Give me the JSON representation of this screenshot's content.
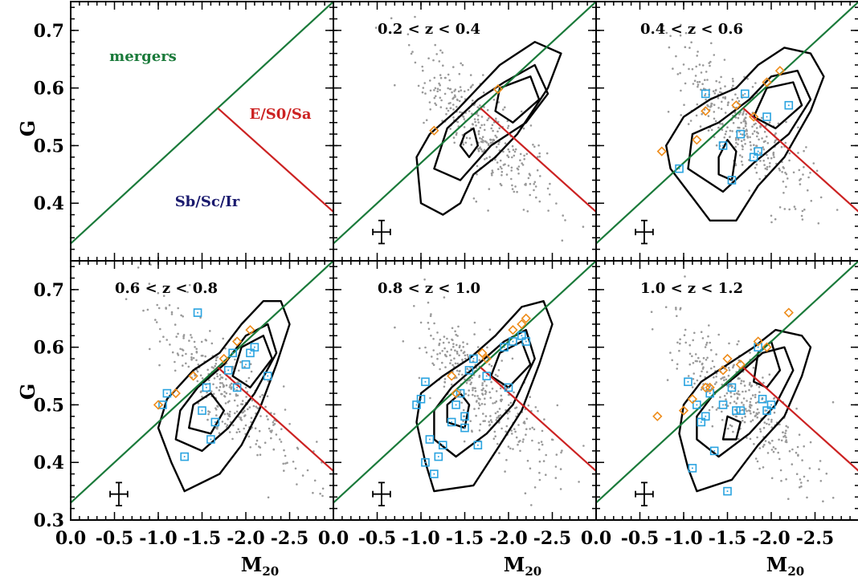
{
  "figure": {
    "ylabel": "G",
    "xlabel_main": "M",
    "xlabel_sub": "20"
  },
  "colors": {
    "merger_line": "#1a7a3a",
    "esa_line": "#cc2222",
    "merger_text": "#1a7a3a",
    "esa_text": "#cc2222",
    "late_text": "#1a1a6e",
    "points": "#999999",
    "contours": "#000000",
    "blue_squares": "#29a3e0",
    "orange_diamonds": "#ee8c1a"
  },
  "chart_data": [
    {
      "type": "scatter",
      "panel": "classification-key",
      "title": "",
      "xlim": [
        0.0,
        -3.0
      ],
      "ylim": [
        0.3,
        0.75
      ],
      "xticks": [
        "0.0",
        "-0.5",
        "-1.0",
        "-1.5",
        "-2.0",
        "-2.5",
        "0.0"
      ],
      "yticks": [
        "0.4",
        "0.5",
        "0.6",
        "0.7"
      ],
      "xlabel": "",
      "ylabel": "G",
      "region_labels": [
        "mergers",
        "E/S0/Sa",
        "Sb/Sc/Ir"
      ],
      "boundaries": {
        "mergers": {
          "x": [
            0.0,
            -3.0
          ],
          "y": [
            0.33,
            0.75
          ]
        },
        "e_s0_sa": {
          "x": [
            -1.68,
            -3.0
          ],
          "y": [
            0.565,
            0.385
          ]
        }
      }
    },
    {
      "type": "scatter",
      "panel": "z-0.2-0.4",
      "title": "0.2 < z < 0.4",
      "xlim": [
        0.0,
        -3.0
      ],
      "ylim": [
        0.3,
        0.75
      ],
      "xticks": [
        "-0.5",
        "-1.0",
        "-1.5",
        "-2.0",
        "-2.5",
        "0.0"
      ],
      "yticks": [],
      "xlabel": "",
      "ylabel": "",
      "error_bar": {
        "x": -0.55,
        "y": 0.35,
        "dx": 0.1,
        "dy": 0.02
      },
      "series": [
        {
          "marker": "square",
          "x": [],
          "y": []
        },
        {
          "marker": "diamond",
          "x": [
            -1.88,
            -1.15
          ],
          "y": [
            0.598,
            0.526
          ]
        }
      ],
      "contours": [
        [
          [
            -1.0,
            0.4
          ],
          [
            -1.25,
            0.38
          ],
          [
            -1.45,
            0.4
          ],
          [
            -1.6,
            0.45
          ],
          [
            -1.85,
            0.48
          ],
          [
            -2.1,
            0.52
          ],
          [
            -2.45,
            0.6
          ],
          [
            -2.6,
            0.66
          ],
          [
            -2.3,
            0.68
          ],
          [
            -1.9,
            0.64
          ],
          [
            -1.65,
            0.6
          ],
          [
            -1.4,
            0.56
          ],
          [
            -1.1,
            0.52
          ],
          [
            -0.95,
            0.48
          ]
        ],
        [
          [
            -1.15,
            0.46
          ],
          [
            -1.45,
            0.44
          ],
          [
            -1.8,
            0.5
          ],
          [
            -2.2,
            0.54
          ],
          [
            -2.45,
            0.59
          ],
          [
            -2.3,
            0.64
          ],
          [
            -1.95,
            0.61
          ],
          [
            -1.65,
            0.58
          ],
          [
            -1.3,
            0.53
          ]
        ],
        [
          [
            -1.85,
            0.56
          ],
          [
            -2.05,
            0.54
          ],
          [
            -2.35,
            0.58
          ],
          [
            -2.25,
            0.62
          ],
          [
            -1.9,
            0.6
          ]
        ],
        [
          [
            -1.45,
            0.5
          ],
          [
            -1.55,
            0.48
          ],
          [
            -1.65,
            0.5
          ],
          [
            -1.6,
            0.53
          ],
          [
            -1.5,
            0.52
          ]
        ]
      ]
    },
    {
      "type": "scatter",
      "panel": "z-0.4-0.6",
      "title": "0.4 < z < 0.6",
      "xlim": [
        0.0,
        -3.0
      ],
      "ylim": [
        0.3,
        0.75
      ],
      "xticks": [
        "-0.5",
        "-1.0",
        "-1.5",
        "-2.0",
        "-2.5",
        "0.0"
      ],
      "yticks": [],
      "xlabel": "",
      "ylabel": "",
      "error_bar": {
        "x": -0.55,
        "y": 0.35,
        "dx": 0.1,
        "dy": 0.02
      },
      "series": [
        {
          "marker": "square",
          "x": [
            -1.25,
            -1.45,
            -1.55,
            -1.65,
            -1.7,
            -1.8,
            -1.85,
            -1.95,
            -2.2,
            -0.95
          ],
          "y": [
            0.59,
            0.5,
            0.44,
            0.52,
            0.59,
            0.48,
            0.49,
            0.55,
            0.57,
            0.46
          ]
        },
        {
          "marker": "diamond",
          "x": [
            -0.75,
            -1.15,
            -1.25,
            -1.6,
            -1.8,
            -1.95,
            -2.1
          ],
          "y": [
            0.49,
            0.51,
            0.56,
            0.57,
            0.55,
            0.61,
            0.63
          ]
        }
      ],
      "contours": [
        [
          [
            -0.85,
            0.46
          ],
          [
            -1.1,
            0.41
          ],
          [
            -1.3,
            0.37
          ],
          [
            -1.6,
            0.37
          ],
          [
            -1.85,
            0.43
          ],
          [
            -2.15,
            0.48
          ],
          [
            -2.45,
            0.56
          ],
          [
            -2.6,
            0.62
          ],
          [
            -2.45,
            0.66
          ],
          [
            -2.15,
            0.67
          ],
          [
            -1.85,
            0.64
          ],
          [
            -1.6,
            0.6
          ],
          [
            -1.3,
            0.58
          ],
          [
            -1.0,
            0.55
          ],
          [
            -0.8,
            0.5
          ]
        ],
        [
          [
            -1.05,
            0.46
          ],
          [
            -1.45,
            0.42
          ],
          [
            -1.8,
            0.47
          ],
          [
            -2.2,
            0.52
          ],
          [
            -2.45,
            0.58
          ],
          [
            -2.3,
            0.63
          ],
          [
            -2.0,
            0.62
          ],
          [
            -1.75,
            0.58
          ],
          [
            -1.4,
            0.54
          ],
          [
            -1.1,
            0.52
          ]
        ],
        [
          [
            -1.8,
            0.55
          ],
          [
            -2.05,
            0.53
          ],
          [
            -2.35,
            0.57
          ],
          [
            -2.25,
            0.61
          ],
          [
            -1.95,
            0.6
          ]
        ],
        [
          [
            -1.4,
            0.45
          ],
          [
            -1.55,
            0.44
          ],
          [
            -1.6,
            0.49
          ],
          [
            -1.5,
            0.51
          ],
          [
            -1.4,
            0.48
          ]
        ]
      ]
    },
    {
      "type": "scatter",
      "panel": "z-0.6-0.8",
      "title": "0.6 < z < 0.8",
      "xlim": [
        0.0,
        -3.0
      ],
      "ylim": [
        0.3,
        0.75
      ],
      "xticks": [
        "0.0",
        "-0.5",
        "-1.0",
        "-1.5",
        "-2.0",
        "-2.5",
        "0.0"
      ],
      "yticks": [
        "0.3",
        "0.4",
        "0.5",
        "0.6",
        "0.7"
      ],
      "xlabel": "M20",
      "ylabel": "G",
      "error_bar": {
        "x": -0.55,
        "y": 0.345,
        "dx": 0.1,
        "dy": 0.02
      },
      "series": [
        {
          "marker": "square",
          "x": [
            -1.45,
            -1.05,
            -1.1,
            -1.5,
            -1.55,
            -1.6,
            -1.65,
            -1.8,
            -1.85,
            -1.9,
            -2.0,
            -2.05,
            -2.1,
            -2.25,
            -1.3
          ],
          "y": [
            0.66,
            0.5,
            0.52,
            0.49,
            0.53,
            0.44,
            0.47,
            0.56,
            0.59,
            0.53,
            0.57,
            0.59,
            0.6,
            0.55,
            0.41
          ]
        },
        {
          "marker": "diamond",
          "x": [
            -1.0,
            -1.2,
            -1.4,
            -1.75,
            -1.9,
            -2.05
          ],
          "y": [
            0.5,
            0.52,
            0.55,
            0.58,
            0.61,
            0.63
          ]
        }
      ],
      "contours": [
        [
          [
            -1.0,
            0.46
          ],
          [
            -1.15,
            0.4
          ],
          [
            -1.3,
            0.35
          ],
          [
            -1.7,
            0.38
          ],
          [
            -1.95,
            0.43
          ],
          [
            -2.15,
            0.49
          ],
          [
            -2.35,
            0.57
          ],
          [
            -2.5,
            0.64
          ],
          [
            -2.4,
            0.68
          ],
          [
            -2.2,
            0.68
          ],
          [
            -1.95,
            0.64
          ],
          [
            -1.7,
            0.59
          ],
          [
            -1.4,
            0.56
          ],
          [
            -1.1,
            0.51
          ]
        ],
        [
          [
            -1.2,
            0.44
          ],
          [
            -1.5,
            0.42
          ],
          [
            -1.8,
            0.46
          ],
          [
            -2.1,
            0.52
          ],
          [
            -2.35,
            0.59
          ],
          [
            -2.25,
            0.64
          ],
          [
            -2.0,
            0.62
          ],
          [
            -1.75,
            0.57
          ],
          [
            -1.45,
            0.53
          ],
          [
            -1.25,
            0.49
          ]
        ],
        [
          [
            -1.85,
            0.55
          ],
          [
            -2.05,
            0.53
          ],
          [
            -2.3,
            0.58
          ],
          [
            -2.2,
            0.62
          ],
          [
            -1.95,
            0.6
          ]
        ],
        [
          [
            -1.35,
            0.46
          ],
          [
            -1.6,
            0.45
          ],
          [
            -1.75,
            0.49
          ],
          [
            -1.6,
            0.52
          ],
          [
            -1.4,
            0.5
          ]
        ]
      ]
    },
    {
      "type": "scatter",
      "panel": "z-0.8-1.0",
      "title": "0.8 < z < 1.0",
      "xlim": [
        0.0,
        -3.0
      ],
      "ylim": [
        0.3,
        0.75
      ],
      "xticks": [
        "-0.5",
        "-1.0",
        "-1.5",
        "-2.0",
        "-2.5",
        "0.0"
      ],
      "yticks": [],
      "xlabel": "M20",
      "ylabel": "",
      "error_bar": {
        "x": -0.55,
        "y": 0.345,
        "dx": 0.1,
        "dy": 0.02
      },
      "series": [
        {
          "marker": "square",
          "x": [
            -0.95,
            -1.0,
            -1.05,
            -1.1,
            -1.2,
            -1.25,
            -1.35,
            -1.4,
            -1.45,
            -1.5,
            -1.55,
            -1.6,
            -1.65,
            -1.75,
            -1.95,
            -2.0,
            -2.05,
            -2.15,
            -2.2,
            -1.05,
            -1.15,
            -1.5
          ],
          "y": [
            0.5,
            0.51,
            0.54,
            0.44,
            0.41,
            0.43,
            0.47,
            0.5,
            0.52,
            0.48,
            0.56,
            0.58,
            0.43,
            0.55,
            0.6,
            0.53,
            0.61,
            0.62,
            0.61,
            0.4,
            0.38,
            0.46
          ]
        },
        {
          "marker": "diamond",
          "x": [
            -1.35,
            -1.7,
            -1.75,
            -2.05,
            -2.15,
            -2.2,
            -1.4
          ],
          "y": [
            0.55,
            0.59,
            0.58,
            0.63,
            0.64,
            0.65,
            0.52
          ]
        }
      ],
      "contours": [
        [
          [
            -0.95,
            0.47
          ],
          [
            -1.05,
            0.4
          ],
          [
            -1.15,
            0.35
          ],
          [
            -1.6,
            0.36
          ],
          [
            -1.9,
            0.43
          ],
          [
            -2.15,
            0.49
          ],
          [
            -2.35,
            0.57
          ],
          [
            -2.5,
            0.64
          ],
          [
            -2.4,
            0.68
          ],
          [
            -2.15,
            0.67
          ],
          [
            -1.85,
            0.62
          ],
          [
            -1.55,
            0.58
          ],
          [
            -1.25,
            0.55
          ],
          [
            -1.0,
            0.52
          ]
        ],
        [
          [
            -1.15,
            0.44
          ],
          [
            -1.4,
            0.41
          ],
          [
            -1.75,
            0.45
          ],
          [
            -2.05,
            0.5
          ],
          [
            -2.3,
            0.58
          ],
          [
            -2.2,
            0.63
          ],
          [
            -1.95,
            0.61
          ],
          [
            -1.65,
            0.57
          ],
          [
            -1.35,
            0.53
          ],
          [
            -1.15,
            0.49
          ]
        ],
        [
          [
            -1.8,
            0.55
          ],
          [
            -2.0,
            0.53
          ],
          [
            -2.25,
            0.57
          ],
          [
            -2.15,
            0.61
          ],
          [
            -1.9,
            0.59
          ]
        ],
        [
          [
            -1.3,
            0.47
          ],
          [
            -1.5,
            0.46
          ],
          [
            -1.55,
            0.5
          ],
          [
            -1.45,
            0.52
          ],
          [
            -1.3,
            0.5
          ]
        ]
      ]
    },
    {
      "type": "scatter",
      "panel": "z-1.0-1.2",
      "title": "1.0 < z < 1.2",
      "xlim": [
        0.0,
        -3.0
      ],
      "ylim": [
        0.3,
        0.75
      ],
      "xticks": [
        "-0.5",
        "-1.0",
        "-1.5",
        "-2.0",
        "-2.5"
      ],
      "yticks": [],
      "xlabel": "M20",
      "ylabel": "",
      "error_bar": {
        "x": -0.55,
        "y": 0.345,
        "dx": 0.1,
        "dy": 0.02
      },
      "series": [
        {
          "marker": "square",
          "x": [
            -1.05,
            -1.15,
            -1.2,
            -1.25,
            -1.3,
            -1.35,
            -1.45,
            -1.55,
            -1.6,
            -1.65,
            -1.85,
            -1.9,
            -1.95,
            -2.0,
            -1.1,
            -1.5
          ],
          "y": [
            0.54,
            0.5,
            0.47,
            0.48,
            0.52,
            0.42,
            0.5,
            0.53,
            0.49,
            0.49,
            0.6,
            0.51,
            0.49,
            0.5,
            0.39,
            0.35
          ]
        },
        {
          "marker": "diamond",
          "x": [
            -0.7,
            -1.0,
            -1.1,
            -1.3,
            -1.45,
            -1.5,
            -1.65,
            -1.85,
            -1.95,
            -2.2,
            -1.25
          ],
          "y": [
            0.48,
            0.49,
            0.51,
            0.53,
            0.56,
            0.58,
            0.57,
            0.61,
            0.6,
            0.66,
            0.53
          ]
        }
      ],
      "contours": [
        [
          [
            -0.95,
            0.45
          ],
          [
            -1.05,
            0.39
          ],
          [
            -1.15,
            0.35
          ],
          [
            -1.55,
            0.37
          ],
          [
            -1.85,
            0.43
          ],
          [
            -2.15,
            0.48
          ],
          [
            -2.35,
            0.55
          ],
          [
            -2.45,
            0.6
          ],
          [
            -2.35,
            0.62
          ],
          [
            -2.05,
            0.63
          ],
          [
            -1.8,
            0.6
          ],
          [
            -1.5,
            0.57
          ],
          [
            -1.2,
            0.54
          ],
          [
            -1.0,
            0.5
          ]
        ],
        [
          [
            -1.15,
            0.44
          ],
          [
            -1.4,
            0.41
          ],
          [
            -1.75,
            0.45
          ],
          [
            -2.05,
            0.5
          ],
          [
            -2.25,
            0.56
          ],
          [
            -2.15,
            0.6
          ],
          [
            -1.9,
            0.59
          ],
          [
            -1.6,
            0.55
          ],
          [
            -1.35,
            0.52
          ],
          [
            -1.15,
            0.48
          ]
        ],
        [
          [
            -1.8,
            0.54
          ],
          [
            -1.95,
            0.53
          ],
          [
            -2.1,
            0.56
          ],
          [
            -2.0,
            0.61
          ],
          [
            -1.85,
            0.59
          ]
        ],
        [
          [
            -1.45,
            0.44
          ],
          [
            -1.6,
            0.44
          ],
          [
            -1.65,
            0.47
          ],
          [
            -1.5,
            0.48
          ]
        ]
      ]
    }
  ]
}
